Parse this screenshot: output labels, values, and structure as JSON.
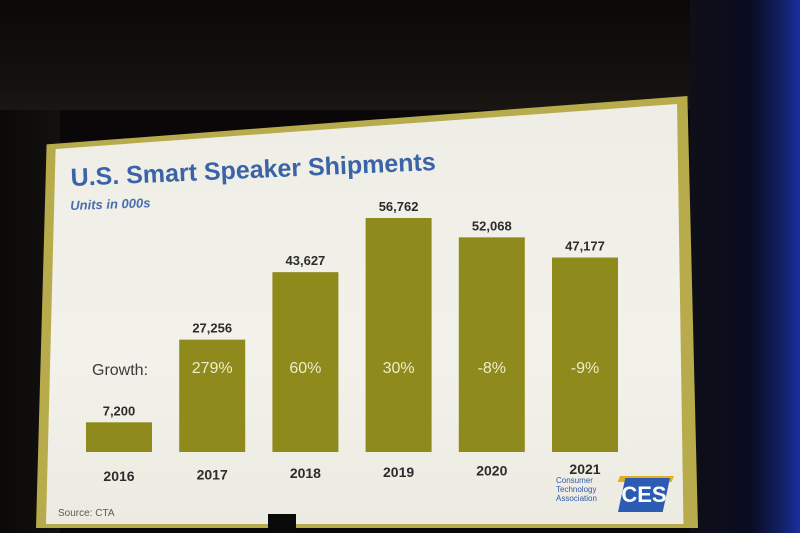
{
  "slide": {
    "title": "U.S. Smart Speaker Shipments",
    "subtitle": "Units in 000s",
    "growth_label": "Growth:",
    "source": "Source: CTA"
  },
  "logo": {
    "line1": "Consumer",
    "line2": "Technology",
    "line3": "Association",
    "mark": "CES"
  },
  "colors": {
    "bar": "#8e8a1c",
    "title": "#3a63a8",
    "slide_background": "#f0efe7",
    "frame": "#b8ab4c"
  },
  "chart_data": {
    "type": "bar",
    "title": "U.S. Smart Speaker Shipments",
    "subtitle": "Units in 000s",
    "categories": [
      "2016",
      "2017",
      "2018",
      "2019",
      "2020",
      "2021"
    ],
    "values": [
      7200,
      27256,
      43627,
      56762,
      52068,
      47177
    ],
    "value_labels": [
      "7,200",
      "27,256",
      "43,627",
      "56,762",
      "52,068",
      "47,177"
    ],
    "growth": [
      "",
      "279%",
      "60%",
      "30%",
      "-8%",
      "-9%"
    ],
    "ylim": [
      0,
      56762
    ],
    "grid": false,
    "legend": "none"
  }
}
